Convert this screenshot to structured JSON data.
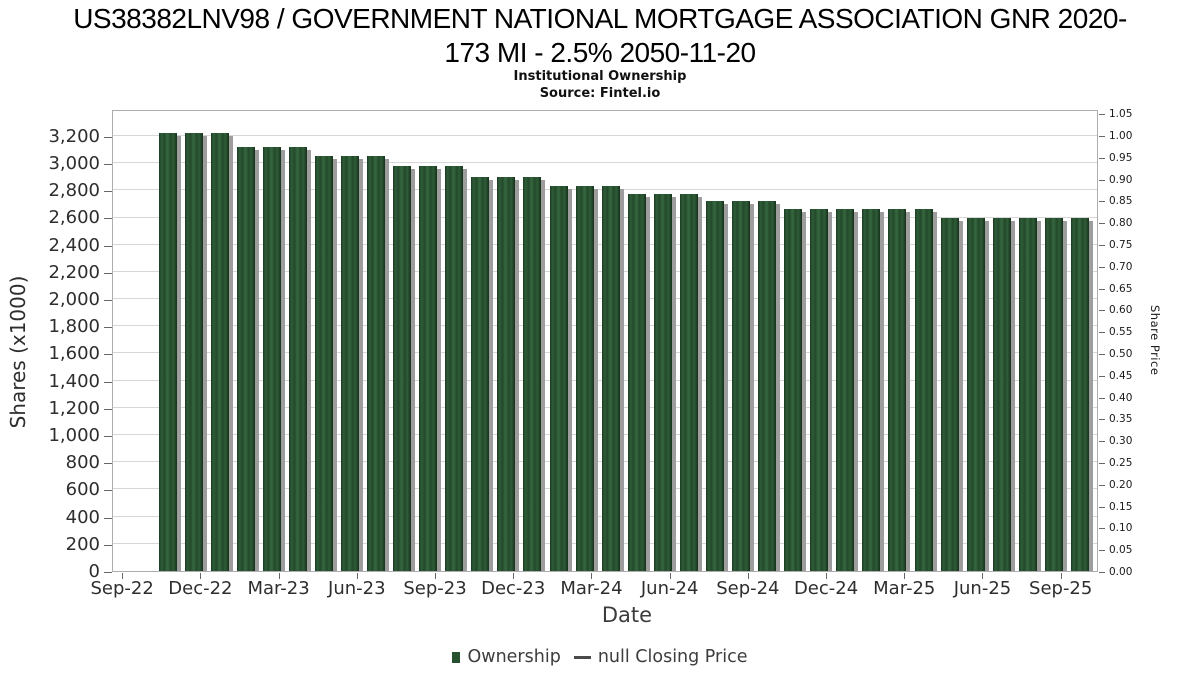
{
  "title": {
    "line1": "US38382LNV98 / GOVERNMENT NATIONAL MORTGAGE ASSOCIATION GNR 2020-",
    "line2": "173 MI - 2.5% 2050-11-20",
    "subtitle": "Institutional Ownership",
    "source": "Source: Fintel.io"
  },
  "chart_data": {
    "type": "bar",
    "title": "US38382LNV98 / GOVERNMENT NATIONAL MORTGAGE ASSOCIATION GNR 2020-173 MI - 2.5% 2050-11-20 — Institutional Ownership",
    "xlabel": "Date",
    "ylabel_left": "Shares (x1000)",
    "ylabel_right": "Share Price",
    "x": [
      "Oct-22",
      "Nov-22",
      "Dec-22",
      "Jan-23",
      "Feb-23",
      "Mar-23",
      "Apr-23",
      "May-23",
      "Jun-23",
      "Jul-23",
      "Aug-23",
      "Sep-23",
      "Oct-23",
      "Nov-23",
      "Dec-23",
      "Jan-24",
      "Feb-24",
      "Mar-24",
      "Apr-24",
      "May-24",
      "Jun-24",
      "Jul-24",
      "Aug-24",
      "Sep-24",
      "Oct-24",
      "Nov-24",
      "Dec-24",
      "Jan-25",
      "Feb-25",
      "Mar-25",
      "Apr-25",
      "May-25",
      "Jun-25",
      "Jul-25",
      "Aug-25",
      "Sep-25"
    ],
    "series": [
      {
        "name": "Ownership",
        "values": [
          3225,
          3225,
          3225,
          3120,
          3120,
          3120,
          3050,
          3050,
          3050,
          2980,
          2980,
          2980,
          2900,
          2900,
          2900,
          2830,
          2830,
          2830,
          2775,
          2775,
          2775,
          2720,
          2720,
          2720,
          2660,
          2660,
          2660,
          2660,
          2660,
          2660,
          2600,
          2600,
          2600,
          2600,
          2600,
          2600
        ]
      },
      {
        "name": "null Closing Price",
        "values": []
      }
    ],
    "x_tick_labels": [
      "Sep-22",
      "Dec-22",
      "Mar-23",
      "Jun-23",
      "Sep-23",
      "Dec-23",
      "Mar-24",
      "Jun-24",
      "Sep-24",
      "Dec-24",
      "Mar-25",
      "Jun-25",
      "Sep-25"
    ],
    "tick_step": 3,
    "tick_offset": -1.7,
    "yticks_left": [
      0,
      200,
      400,
      600,
      800,
      1000,
      1200,
      1400,
      1600,
      1800,
      2000,
      2200,
      2400,
      2600,
      2800,
      3000,
      3200
    ],
    "ylim_left": [
      0,
      3398
    ],
    "yticks_right": [
      0.0,
      0.05,
      0.1,
      0.15,
      0.2,
      0.25,
      0.3,
      0.35,
      0.4,
      0.45,
      0.5,
      0.55,
      0.6,
      0.65,
      0.7,
      0.75,
      0.8,
      0.85,
      0.9,
      0.95,
      1.0,
      1.05
    ],
    "ylim_right": [
      0,
      1.0595
    ],
    "grid": "horizontal",
    "legend_position": "bottom-center",
    "bar_color": "#2c5835",
    "bar_shadow_color": "#9d9d9d",
    "gridline_color": "#d7d7d7"
  },
  "legend": {
    "ownership_label": "Ownership",
    "price_label": "null Closing Price"
  }
}
